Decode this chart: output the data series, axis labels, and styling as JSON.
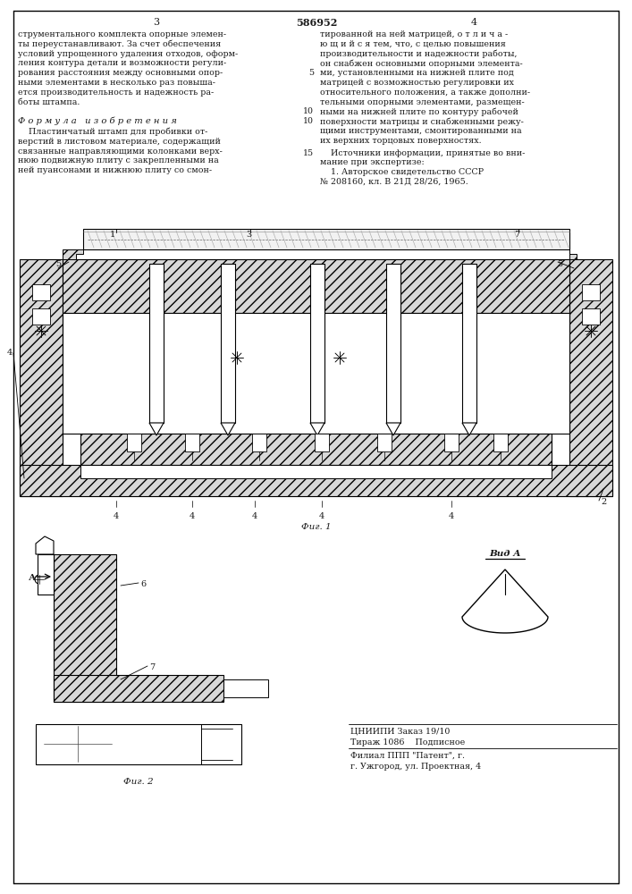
{
  "page_width": 7.07,
  "page_height": 10.0,
  "bg_color": "#ffffff",
  "text_color": "#1a1a1a",
  "line_color": "#000000",
  "patent_number": "586952",
  "page_left_num": "3",
  "page_right_num": "4",
  "left_col_lines": [
    "струментального комплекта опорные элемен-",
    "ты переустанавливают. За счет обеспечения",
    "условий упрощенного удаления отходов, оформ-",
    "ления контура детали и возможности регули-",
    "рования расстояния между основными опор-",
    "ными элементами в несколько раз повыша-",
    "ется производительность и надежность ра-",
    "боты штампа."
  ],
  "right_col_lines_top": [
    "тированной на ней матрицей, о т л и ч а -",
    "ю щ и й с я тем, что, с целью повышения",
    "производительности и надежности работы,",
    "он снабжен основными опорными элемента-",
    "ми, установленными на нижней плите под",
    "матрицей с возможностью регулировки их",
    "относительного положения, а также дополни-",
    "тельными опорными элементами, размещен-"
  ],
  "right_col_lines_mid": [
    "ными на нижней плите по контуру рабочей",
    "поверхности матрицы и снабженными режу-",
    "щими инструментами, смонтированными на",
    "их верхних торцовых поверхностях."
  ],
  "formula_title": "Ф о р м у л а   и з о б р е т е н и я",
  "formula_lines": [
    "    Пластинчатый штамп для пробивки от-",
    "верстий в листовом материале, содержащий",
    "связанные направляющими колонками верх-",
    "нюю подвижную плиту с закрепленными на",
    "ней пуансонами и нижнюю плиту со смон-"
  ],
  "sources_lines": [
    "    Источники информации, принятые во вни-",
    "мание при экспертизе:",
    "    1. Авторское свидетельство СССР",
    "№ 208160, кл. В 21Д 28/26, 1965."
  ],
  "bottom_info": [
    "ЦНИИПИ Заказ 19/10",
    "Тираж 1086    Подписное",
    "Филиал ППП \"Патент\", г.",
    "г. Ужгород, ул. Проектная, 4"
  ],
  "fig1_caption": "Фиг. 1",
  "fig2_caption": "Фиг. 2",
  "vida_caption": "Вид А",
  "label_A": "А"
}
